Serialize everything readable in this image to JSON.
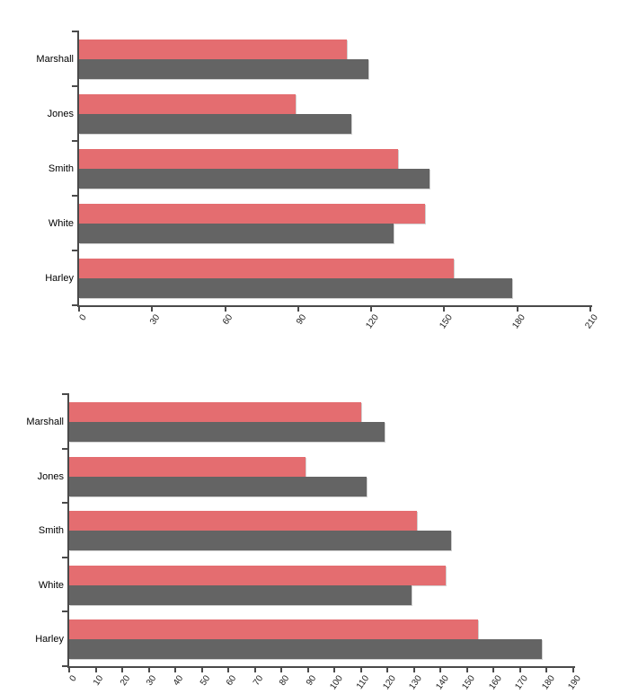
{
  "page": {
    "background": "#ffffff"
  },
  "chart_data": [
    {
      "type": "bar",
      "orientation": "horizontal",
      "title": "",
      "xlabel": "",
      "ylabel": "",
      "grid": false,
      "legend": "none",
      "categories": [
        "Marshall",
        "Jones",
        "Smith",
        "White",
        "Harley"
      ],
      "series": [
        {
          "color": "#e46d70",
          "values": [
            110,
            89,
            131,
            142,
            154
          ]
        },
        {
          "color": "#646464",
          "values": [
            119,
            112,
            144,
            129,
            178
          ]
        }
      ],
      "xlim": [
        0,
        210
      ],
      "xticks": [
        0,
        30,
        60,
        90,
        120,
        150,
        180,
        210
      ],
      "axis_color": "#4a4a4a",
      "tick_label_color": "#222222"
    },
    {
      "type": "bar",
      "orientation": "horizontal",
      "title": "",
      "xlabel": "",
      "ylabel": "",
      "grid": false,
      "legend": "none",
      "categories": [
        "Marshall",
        "Jones",
        "Smith",
        "White",
        "Harley"
      ],
      "series": [
        {
          "color": "#e46d70",
          "values": [
            110,
            89,
            131,
            142,
            154
          ]
        },
        {
          "color": "#646464",
          "values": [
            119,
            112,
            144,
            129,
            178
          ]
        }
      ],
      "xlim": [
        0,
        190
      ],
      "xticks": [
        0,
        10,
        20,
        30,
        40,
        50,
        60,
        70,
        80,
        90,
        100,
        110,
        120,
        130,
        140,
        150,
        160,
        170,
        180,
        190
      ],
      "axis_color": "#4a4a4a",
      "tick_label_color": "#222222"
    }
  ]
}
